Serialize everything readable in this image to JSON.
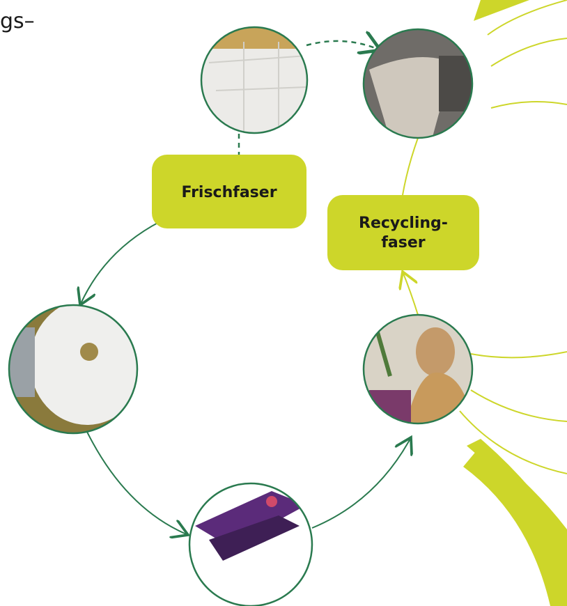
{
  "fragment": "gs–",
  "labels": {
    "fresh": "Frischfaser",
    "recycled": [
      "Recycling-",
      "faser"
    ]
  }
}
